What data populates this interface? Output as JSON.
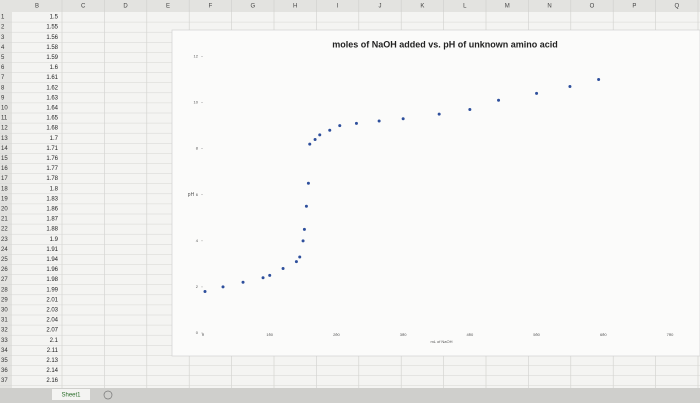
{
  "spreadsheet": {
    "columns": [
      "B",
      "C",
      "D",
      "E",
      "F",
      "G",
      "H",
      "I",
      "J",
      "K",
      "L",
      "M",
      "N",
      "O",
      "P",
      "Q"
    ],
    "rows": [
      1,
      2,
      3,
      4,
      5,
      6,
      7,
      8,
      9,
      10,
      11,
      12,
      13,
      14,
      15,
      16,
      17,
      18,
      19,
      20,
      21,
      22,
      23,
      24,
      25,
      26,
      27,
      28,
      29,
      30,
      31,
      32,
      33,
      34,
      35,
      36,
      37
    ],
    "column_b": [
      1.5,
      1.55,
      1.56,
      1.58,
      1.59,
      1.6,
      1.61,
      1.62,
      1.63,
      1.64,
      1.65,
      1.68,
      1.7,
      1.71,
      1.76,
      1.77,
      1.78,
      1.8,
      1.83,
      1.86,
      1.87,
      1.88,
      1.9,
      1.91,
      1.94,
      1.96,
      1.98,
      1.99,
      2.01,
      2.03,
      2.04,
      2.07,
      2.1,
      2.11,
      2.13,
      2.14,
      2.16
    ],
    "sheet_tab": "Sheet1"
  },
  "chart_data": {
    "type": "scatter",
    "title": "moles of NaOH added vs. pH of unknown amino acid",
    "x_label": "mL of NaOH",
    "y_label": "pH",
    "x": [
      3,
      30,
      60,
      90,
      100,
      120,
      140,
      145,
      150,
      152,
      155,
      158,
      160,
      168,
      175,
      190,
      205,
      230,
      264,
      300,
      354,
      400,
      443,
      500,
      550,
      593
    ],
    "y": [
      1.8,
      2.0,
      2.2,
      2.4,
      2.5,
      2.8,
      3.1,
      3.3,
      4.0,
      4.5,
      5.5,
      6.5,
      8.2,
      8.4,
      8.6,
      8.8,
      9.0,
      9.1,
      9.2,
      9.3,
      9.5,
      9.7,
      10.1,
      10.4,
      10.7,
      11.0
    ],
    "color": "#2e4f9c",
    "xlim": [
      0,
      700
    ],
    "ylim": [
      0,
      12.5
    ],
    "xticks": [
      0,
      100,
      200,
      300,
      400,
      500,
      600,
      700
    ],
    "yticks": [
      0,
      2,
      4,
      6,
      8,
      10,
      12
    ]
  }
}
